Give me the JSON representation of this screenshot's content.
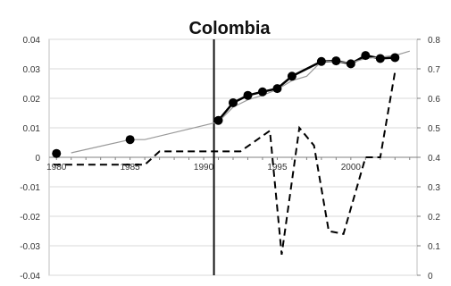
{
  "chart_data": {
    "type": "line",
    "title": "Colombia",
    "x_ticks": [
      {
        "label": "1980",
        "value": 1980
      },
      {
        "label": "1985",
        "value": 1985
      },
      {
        "label": "1990",
        "value": 1990
      },
      {
        "label": "1995",
        "value": 1995
      },
      {
        "label": "2000",
        "value": 2000
      }
    ],
    "xlim": [
      1979.5,
      2004.5
    ],
    "y_left": {
      "range": [
        -0.04,
        0.04
      ],
      "ticks": [
        "0.04",
        "0.03",
        "0.02",
        "0.01",
        "0",
        "-0.01",
        "-0.02",
        "-0.03",
        "-0.04"
      ],
      "tick_values": [
        0.04,
        0.03,
        0.02,
        0.01,
        0,
        -0.01,
        -0.02,
        -0.03,
        -0.04
      ]
    },
    "y_right": {
      "range": [
        0,
        0.8
      ],
      "ticks": [
        "0.8",
        "0.7",
        "0.6",
        "0.5",
        "0.4",
        "0.3",
        "0.2",
        "0.1",
        "0"
      ],
      "tick_values": [
        0.8,
        0.7,
        0.6,
        0.5,
        0.4,
        0.3,
        0.2,
        0.1,
        0
      ]
    },
    "vertical_line_x": 1990.7,
    "series": [
      {
        "style": "markers",
        "axis": "left",
        "color": "#000000",
        "x": [
          1980,
          1985,
          1991,
          1992,
          1993,
          1994,
          1995,
          1996,
          1998,
          1999,
          2000,
          2001,
          2002,
          2003
        ],
        "values": [
          0.0013,
          0.006,
          0.0125,
          0.0185,
          0.021,
          0.0222,
          0.0233,
          0.0275,
          0.0325,
          0.0327,
          0.0317,
          0.0345,
          0.0335,
          0.0338
        ]
      },
      {
        "style": "thin-line",
        "axis": "left",
        "color": "#999999",
        "x": [
          1981,
          1985,
          1986,
          1991,
          1992,
          1993,
          1994,
          1995,
          1996,
          1997,
          1998,
          1999,
          2000,
          2001,
          2002,
          2003,
          2004
        ],
        "values": [
          0.0015,
          0.006,
          0.006,
          0.012,
          0.017,
          0.0195,
          0.021,
          0.023,
          0.026,
          0.0275,
          0.0325,
          0.0325,
          0.032,
          0.0335,
          0.034,
          0.0345,
          0.036
        ]
      },
      {
        "style": "dashed",
        "axis": "right",
        "color": "#000000",
        "x": [
          1979.8,
          1986,
          1987,
          1992.5,
          1994.5,
          1995.3,
          1996.5,
          1997.5,
          1998.5,
          1999.5,
          2001,
          2002,
          2003
        ],
        "values": [
          0.375,
          0.375,
          0.42,
          0.42,
          0.49,
          0.07,
          0.5,
          0.44,
          0.15,
          0.14,
          0.4,
          0.4,
          0.69
        ]
      }
    ]
  }
}
